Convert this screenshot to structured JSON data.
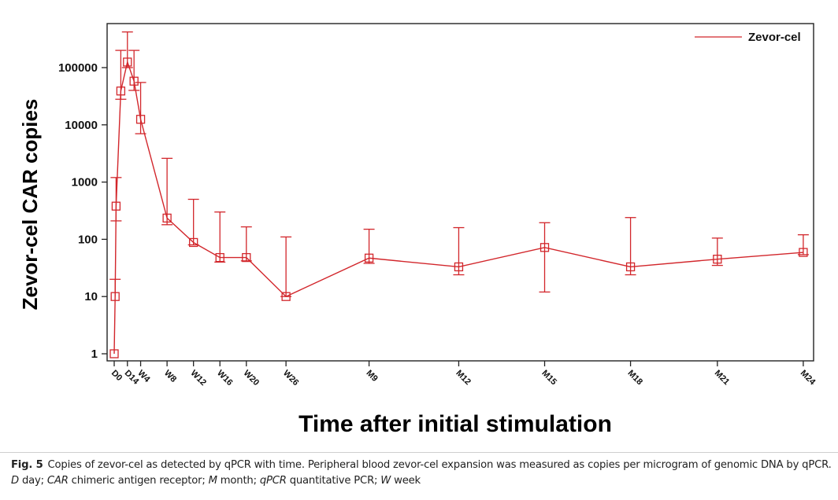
{
  "chart_data": {
    "type": "line",
    "title": "",
    "xlabel": "Time after initial stimulation",
    "ylabel": "Zevor-cel CAR copies",
    "yscale": "log",
    "ylim": [
      1,
      300000
    ],
    "yticks": [
      1,
      10,
      100,
      1000,
      10000,
      100000
    ],
    "ytick_labels": [
      "1",
      "10",
      "100",
      "1000",
      "10000",
      "100000"
    ],
    "xticks": [
      {
        "label": "D0",
        "day": 0
      },
      {
        "label": "D14",
        "day": 14
      },
      {
        "label": "W4",
        "day": 28
      },
      {
        "label": "W8",
        "day": 56
      },
      {
        "label": "W12",
        "day": 84
      },
      {
        "label": "W16",
        "day": 112
      },
      {
        "label": "W20",
        "day": 140
      },
      {
        "label": "W26",
        "day": 182
      },
      {
        "label": "M9",
        "day": 270
      },
      {
        "label": "M12",
        "day": 365
      },
      {
        "label": "M15",
        "day": 456
      },
      {
        "label": "M18",
        "day": 547
      },
      {
        "label": "M21",
        "day": 639
      },
      {
        "label": "M24",
        "day": 730
      }
    ],
    "legend": {
      "position": "top-right",
      "entries": [
        "Zevor-cel"
      ]
    },
    "grid": false,
    "series": [
      {
        "name": "Zevor-cel",
        "color": "#d2262b",
        "marker": "square-open",
        "points": [
          {
            "day": 0,
            "y": 1,
            "err_low": null,
            "err_high": null
          },
          {
            "day": 1,
            "y": 10,
            "err_low": null,
            "err_high": 20
          },
          {
            "day": 2,
            "y": 380,
            "err_low": 210,
            "err_high": 1200
          },
          {
            "day": 7,
            "y": 39000,
            "err_low": 28000,
            "err_high": 200000
          },
          {
            "day": 14,
            "y": 125000,
            "err_low": 100000,
            "err_high": 420000
          },
          {
            "day": 21,
            "y": 58000,
            "err_low": 40000,
            "err_high": 200000
          },
          {
            "day": 28,
            "y": 12500,
            "err_low": 7000,
            "err_high": 55000
          },
          {
            "day": 56,
            "y": 235,
            "err_low": 180,
            "err_high": 2600
          },
          {
            "day": 84,
            "y": 88,
            "err_low": 80,
            "err_high": 500
          },
          {
            "day": 112,
            "y": 48,
            "err_low": 40,
            "err_high": 300
          },
          {
            "day": 140,
            "y": 48,
            "err_low": 42,
            "err_high": 165
          },
          {
            "day": 182,
            "y": 10,
            "err_low": 10,
            "err_high": 110
          },
          {
            "day": 270,
            "y": 47,
            "err_low": 38,
            "err_high": 150
          },
          {
            "day": 365,
            "y": 33,
            "err_low": 24,
            "err_high": 160
          },
          {
            "day": 456,
            "y": 72,
            "err_low": 12,
            "err_high": 195
          },
          {
            "day": 547,
            "y": 33,
            "err_low": 24,
            "err_high": 240
          },
          {
            "day": 639,
            "y": 45,
            "err_low": 35,
            "err_high": 105
          },
          {
            "day": 730,
            "y": 59,
            "err_low": 54,
            "err_high": 120
          }
        ]
      }
    ]
  },
  "caption": {
    "fig_label": "Fig. 5",
    "part1": "Copies of zevor-cel as detected by qPCR with time. Peripheral blood zevor-cel expansion was measured as copies per microgram of genomic DNA by qPCR. ",
    "abbr": [
      {
        "term": "D",
        "def": " day; "
      },
      {
        "term": "CAR",
        "def": " chimeric antigen receptor; "
      },
      {
        "term": "M",
        "def": " month; "
      },
      {
        "term": "qPCR",
        "def": " quantitative PCR; "
      },
      {
        "term": "W",
        "def": " week"
      }
    ]
  }
}
